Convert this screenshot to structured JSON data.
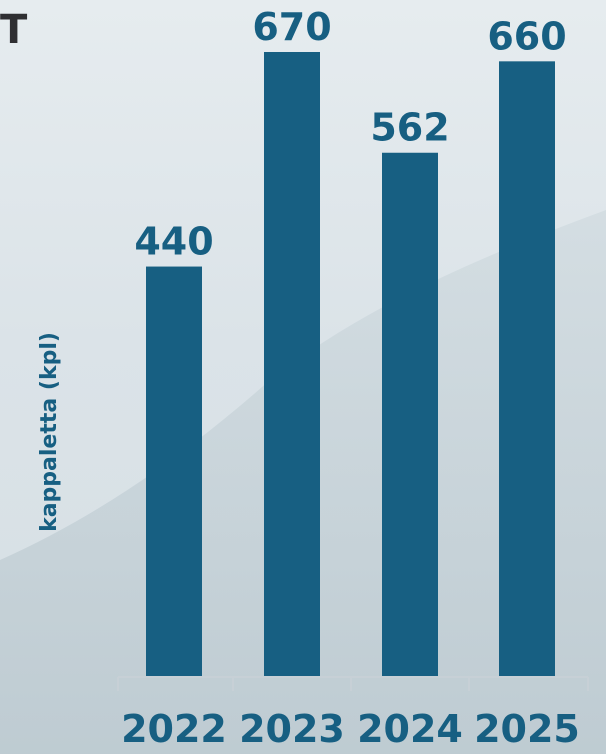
{
  "title_fragment": "T",
  "chart_data": {
    "type": "bar",
    "categories": [
      "2022",
      "2023",
      "2024",
      "2025"
    ],
    "values": [
      440,
      670,
      562,
      660
    ],
    "data_labels": [
      "440",
      "670",
      "562",
      "660"
    ],
    "ylabel": "kappaletta (kpl)",
    "xlabel": "",
    "ylim": [
      0,
      670
    ],
    "grid": false,
    "legend": "none"
  },
  "colors": {
    "bar": "#175f82",
    "label": "#175f82",
    "axis": "#c7d0d6",
    "mountain_light": "#cfd9de",
    "mountain_dark": "#b8c6cd"
  }
}
